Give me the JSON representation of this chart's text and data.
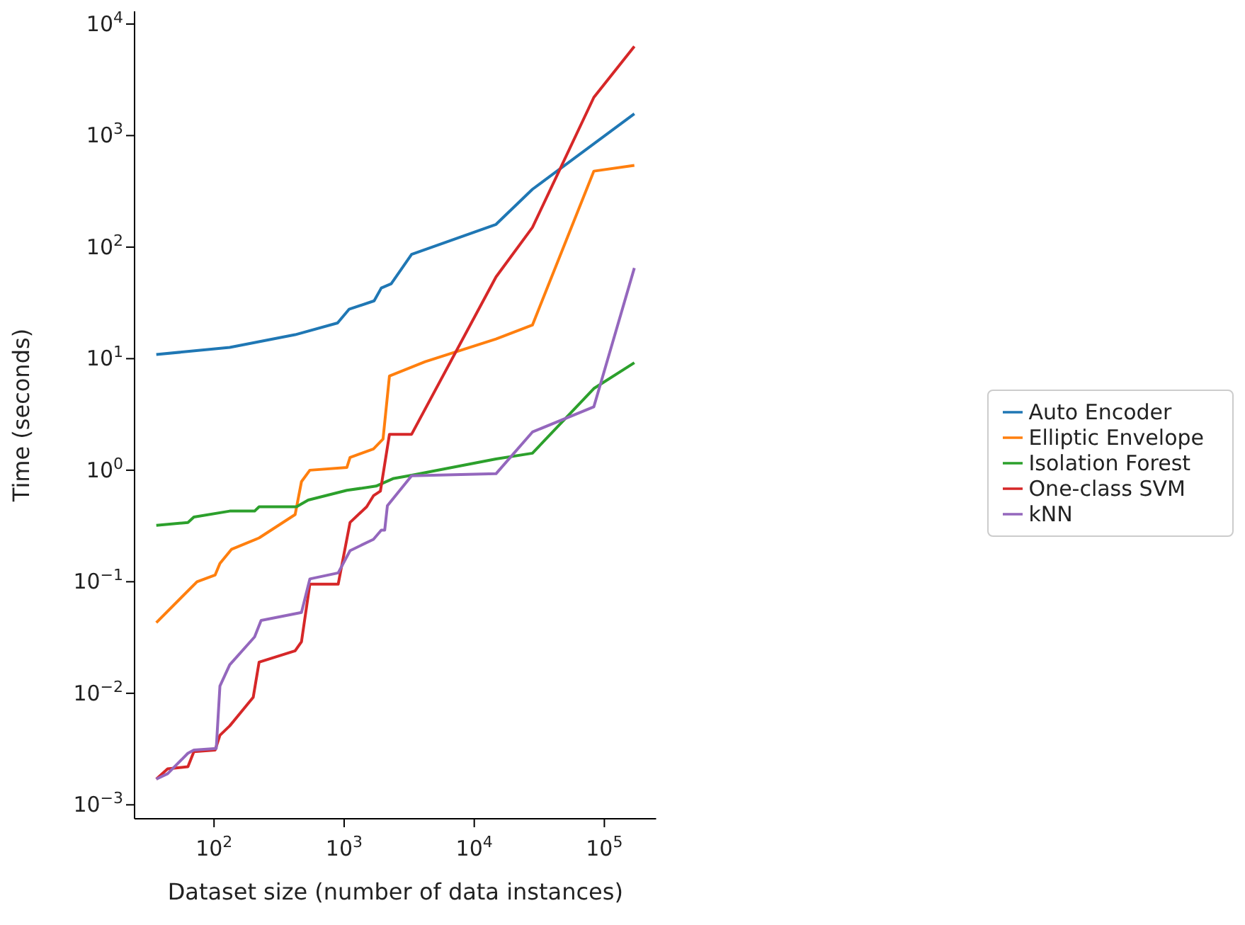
{
  "chart_data": {
    "type": "line",
    "xlabel": "Dataset size (number of data instances)",
    "ylabel": "Time (seconds)",
    "log": "xy",
    "grid": false,
    "legend": "right",
    "marker": "none",
    "line_style": "solid",
    "xlim": [
      24.5,
      250000
    ],
    "ylim": [
      0.00075,
      13000
    ],
    "xticks": [
      {
        "value": 100,
        "label": "10$^{2}$"
      },
      {
        "value": 1000,
        "label": "10$^{3}$"
      },
      {
        "value": 10000,
        "label": "10$^{4}$"
      },
      {
        "value": 100000,
        "label": "10$^{5}$"
      }
    ],
    "yticks": [
      {
        "value": 0.001,
        "label": "10$^{−3}$"
      },
      {
        "value": 0.01,
        "label": "10$^{−2}$"
      },
      {
        "value": 0.1,
        "label": "10$^{−1}$"
      },
      {
        "value": 1,
        "label": "10$^{0}$"
      },
      {
        "value": 10,
        "label": "10$^{1}$"
      },
      {
        "value": 100,
        "label": "10$^{2}$"
      },
      {
        "value": 1000,
        "label": "10$^{3}$"
      },
      {
        "value": 10000,
        "label": "10$^{4}$"
      }
    ],
    "series": [
      {
        "name": "Auto Encoder",
        "color": "#1f77b4",
        "x": [
          36,
          132,
          420,
          890,
          1090,
          1700,
          1930,
          2300,
          3300,
          14700,
          28000,
          170000
        ],
        "values": [
          10.9,
          12.6,
          16.4,
          20.9,
          27.7,
          33,
          43,
          47,
          86,
          160,
          330,
          1570
        ]
      },
      {
        "name": "Elliptic Envelope",
        "color": "#ff7f0e",
        "x": [
          36,
          74,
          102,
          111,
          136,
          222,
          420,
          470,
          545,
          1050,
          1110,
          1680,
          1990,
          2230,
          4200,
          14700,
          28000,
          83000,
          170000
        ],
        "values": [
          0.043,
          0.1,
          0.115,
          0.146,
          0.195,
          0.247,
          0.4,
          0.79,
          1.0,
          1.06,
          1.3,
          1.55,
          1.9,
          7,
          9.4,
          15,
          20,
          480,
          540
        ]
      },
      {
        "name": "Isolation Forest",
        "color": "#2ca02c",
        "x": [
          36,
          63,
          70,
          132,
          205,
          222,
          430,
          530,
          1050,
          1760,
          2370,
          3300,
          14700,
          28000,
          83000,
          170000
        ],
        "values": [
          0.32,
          0.34,
          0.38,
          0.43,
          0.43,
          0.47,
          0.47,
          0.54,
          0.66,
          0.72,
          0.84,
          0.9,
          1.26,
          1.42,
          5.4,
          9.2
        ]
      },
      {
        "name": "One-class SVM",
        "color": "#d62728",
        "x": [
          36,
          44,
          63,
          70,
          102,
          111,
          132,
          200,
          222,
          420,
          470,
          545,
          900,
          1110,
          1490,
          1680,
          1900,
          2230,
          3300,
          14700,
          28000,
          83000,
          170000
        ],
        "values": [
          0.0017,
          0.0021,
          0.0022,
          0.003,
          0.0031,
          0.0042,
          0.0051,
          0.0092,
          0.019,
          0.024,
          0.029,
          0.095,
          0.095,
          0.34,
          0.47,
          0.59,
          0.65,
          2.1,
          2.1,
          54,
          150,
          2200,
          6300
        ]
      },
      {
        "name": "kNN",
        "color": "#9467bd",
        "x": [
          36,
          44,
          63,
          70,
          104,
          111,
          132,
          205,
          230,
          470,
          545,
          900,
          1110,
          1680,
          1930,
          2050,
          2150,
          3300,
          14700,
          28000,
          83000,
          170000
        ],
        "values": [
          0.0017,
          0.0019,
          0.0029,
          0.0031,
          0.0032,
          0.0116,
          0.018,
          0.032,
          0.045,
          0.053,
          0.106,
          0.12,
          0.19,
          0.24,
          0.29,
          0.29,
          0.48,
          0.89,
          0.93,
          2.2,
          3.7,
          65
        ]
      }
    ]
  }
}
